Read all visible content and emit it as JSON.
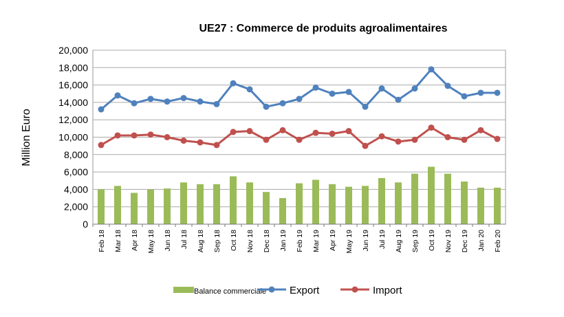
{
  "chart_data": {
    "type": "bar+line",
    "title": "UE27 : Commerce de produits agroalimentaires",
    "ylabel": "Million Euro",
    "xlabel": "",
    "ylim": [
      0,
      20000
    ],
    "yticks": [
      0,
      2000,
      4000,
      6000,
      8000,
      10000,
      12000,
      14000,
      16000,
      18000,
      20000
    ],
    "ytick_labels": [
      "0",
      "2,000",
      "4,000",
      "6,000",
      "8,000",
      "10,000",
      "12,000",
      "14,000",
      "16,000",
      "18,000",
      "20,000"
    ],
    "grid": true,
    "legend_position": "bottom",
    "categories": [
      "Feb 18",
      "Mar 18",
      "Apr 18",
      "May 18",
      "Jun 18",
      "Jul 18",
      "Aug 18",
      "Sep 18",
      "Oct 18",
      "Nov 18",
      "Dec 18",
      "Jan 19",
      "Feb 19",
      "Mar 19",
      "Apr 19",
      "May 19",
      "Jun 19",
      "Jul 19",
      "Aug 19",
      "Sep 19",
      "Oct 19",
      "Nov 19",
      "Dec 19",
      "Jan 20",
      "Feb 20"
    ],
    "series": [
      {
        "name": "Balance commerciale",
        "type": "bar",
        "color": "#9bbb59",
        "values": [
          4000,
          4400,
          3600,
          4000,
          4100,
          4800,
          4600,
          4600,
          5500,
          4800,
          3700,
          3000,
          4700,
          5100,
          4600,
          4300,
          4400,
          5300,
          4800,
          5800,
          6600,
          5800,
          4900,
          4200,
          4200
        ]
      },
      {
        "name": "Export",
        "type": "line",
        "color": "#4f81bd",
        "values": [
          13200,
          14800,
          13900,
          14400,
          14100,
          14500,
          14100,
          13800,
          16200,
          15500,
          13500,
          13900,
          14400,
          15700,
          15000,
          15200,
          13500,
          15600,
          14300,
          15600,
          17800,
          15900,
          14700,
          15100,
          15100
        ]
      },
      {
        "name": "Import",
        "type": "line",
        "color": "#c0504d",
        "values": [
          9100,
          10200,
          10200,
          10300,
          10000,
          9600,
          9400,
          9100,
          10600,
          10700,
          9700,
          10800,
          9700,
          10500,
          10400,
          10700,
          9000,
          10100,
          9500,
          9700,
          11100,
          10000,
          9700,
          10800,
          9800
        ]
      }
    ]
  }
}
